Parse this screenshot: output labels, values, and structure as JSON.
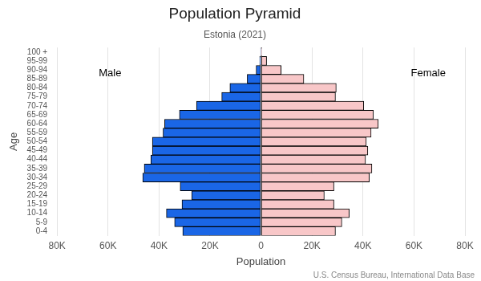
{
  "chart_data": {
    "type": "bar",
    "orientation": "horizontal",
    "title": "Population Pyramid",
    "subtitle": "Estonia (2021)",
    "xlabel": "Population",
    "ylabel": "Age",
    "source": "U.S. Census Bureau, International Data Base",
    "categories": [
      "0-4",
      "5-9",
      "10-14",
      "15-19",
      "20-24",
      "25-29",
      "30-34",
      "35-39",
      "40-44",
      "45-49",
      "50-54",
      "55-59",
      "60-64",
      "65-69",
      "70-74",
      "75-79",
      "80-84",
      "85-89",
      "90-94",
      "95-99",
      "100 +"
    ],
    "series": [
      {
        "name": "Male",
        "color": "#1a66e6",
        "values": [
          30700,
          33900,
          37100,
          31000,
          27200,
          31700,
          46400,
          45800,
          43200,
          42600,
          42600,
          38400,
          37800,
          32000,
          25300,
          15400,
          12200,
          5400,
          1900,
          500,
          100
        ]
      },
      {
        "name": "Female",
        "color": "#f8c7c8",
        "values": [
          29200,
          31700,
          34600,
          28600,
          24800,
          28600,
          42500,
          43500,
          41000,
          41900,
          41300,
          43200,
          46000,
          44100,
          40300,
          29200,
          29500,
          16800,
          7900,
          2200,
          300
        ]
      }
    ],
    "xlim": [
      0,
      80000
    ],
    "xticks": [
      0,
      {
        "value": 20000,
        "label": "20K"
      },
      {
        "value": 40000,
        "label": "40K"
      },
      {
        "value": 60000,
        "label": "60K"
      },
      {
        "value": 80000,
        "label": "80K"
      }
    ],
    "grid": true
  }
}
